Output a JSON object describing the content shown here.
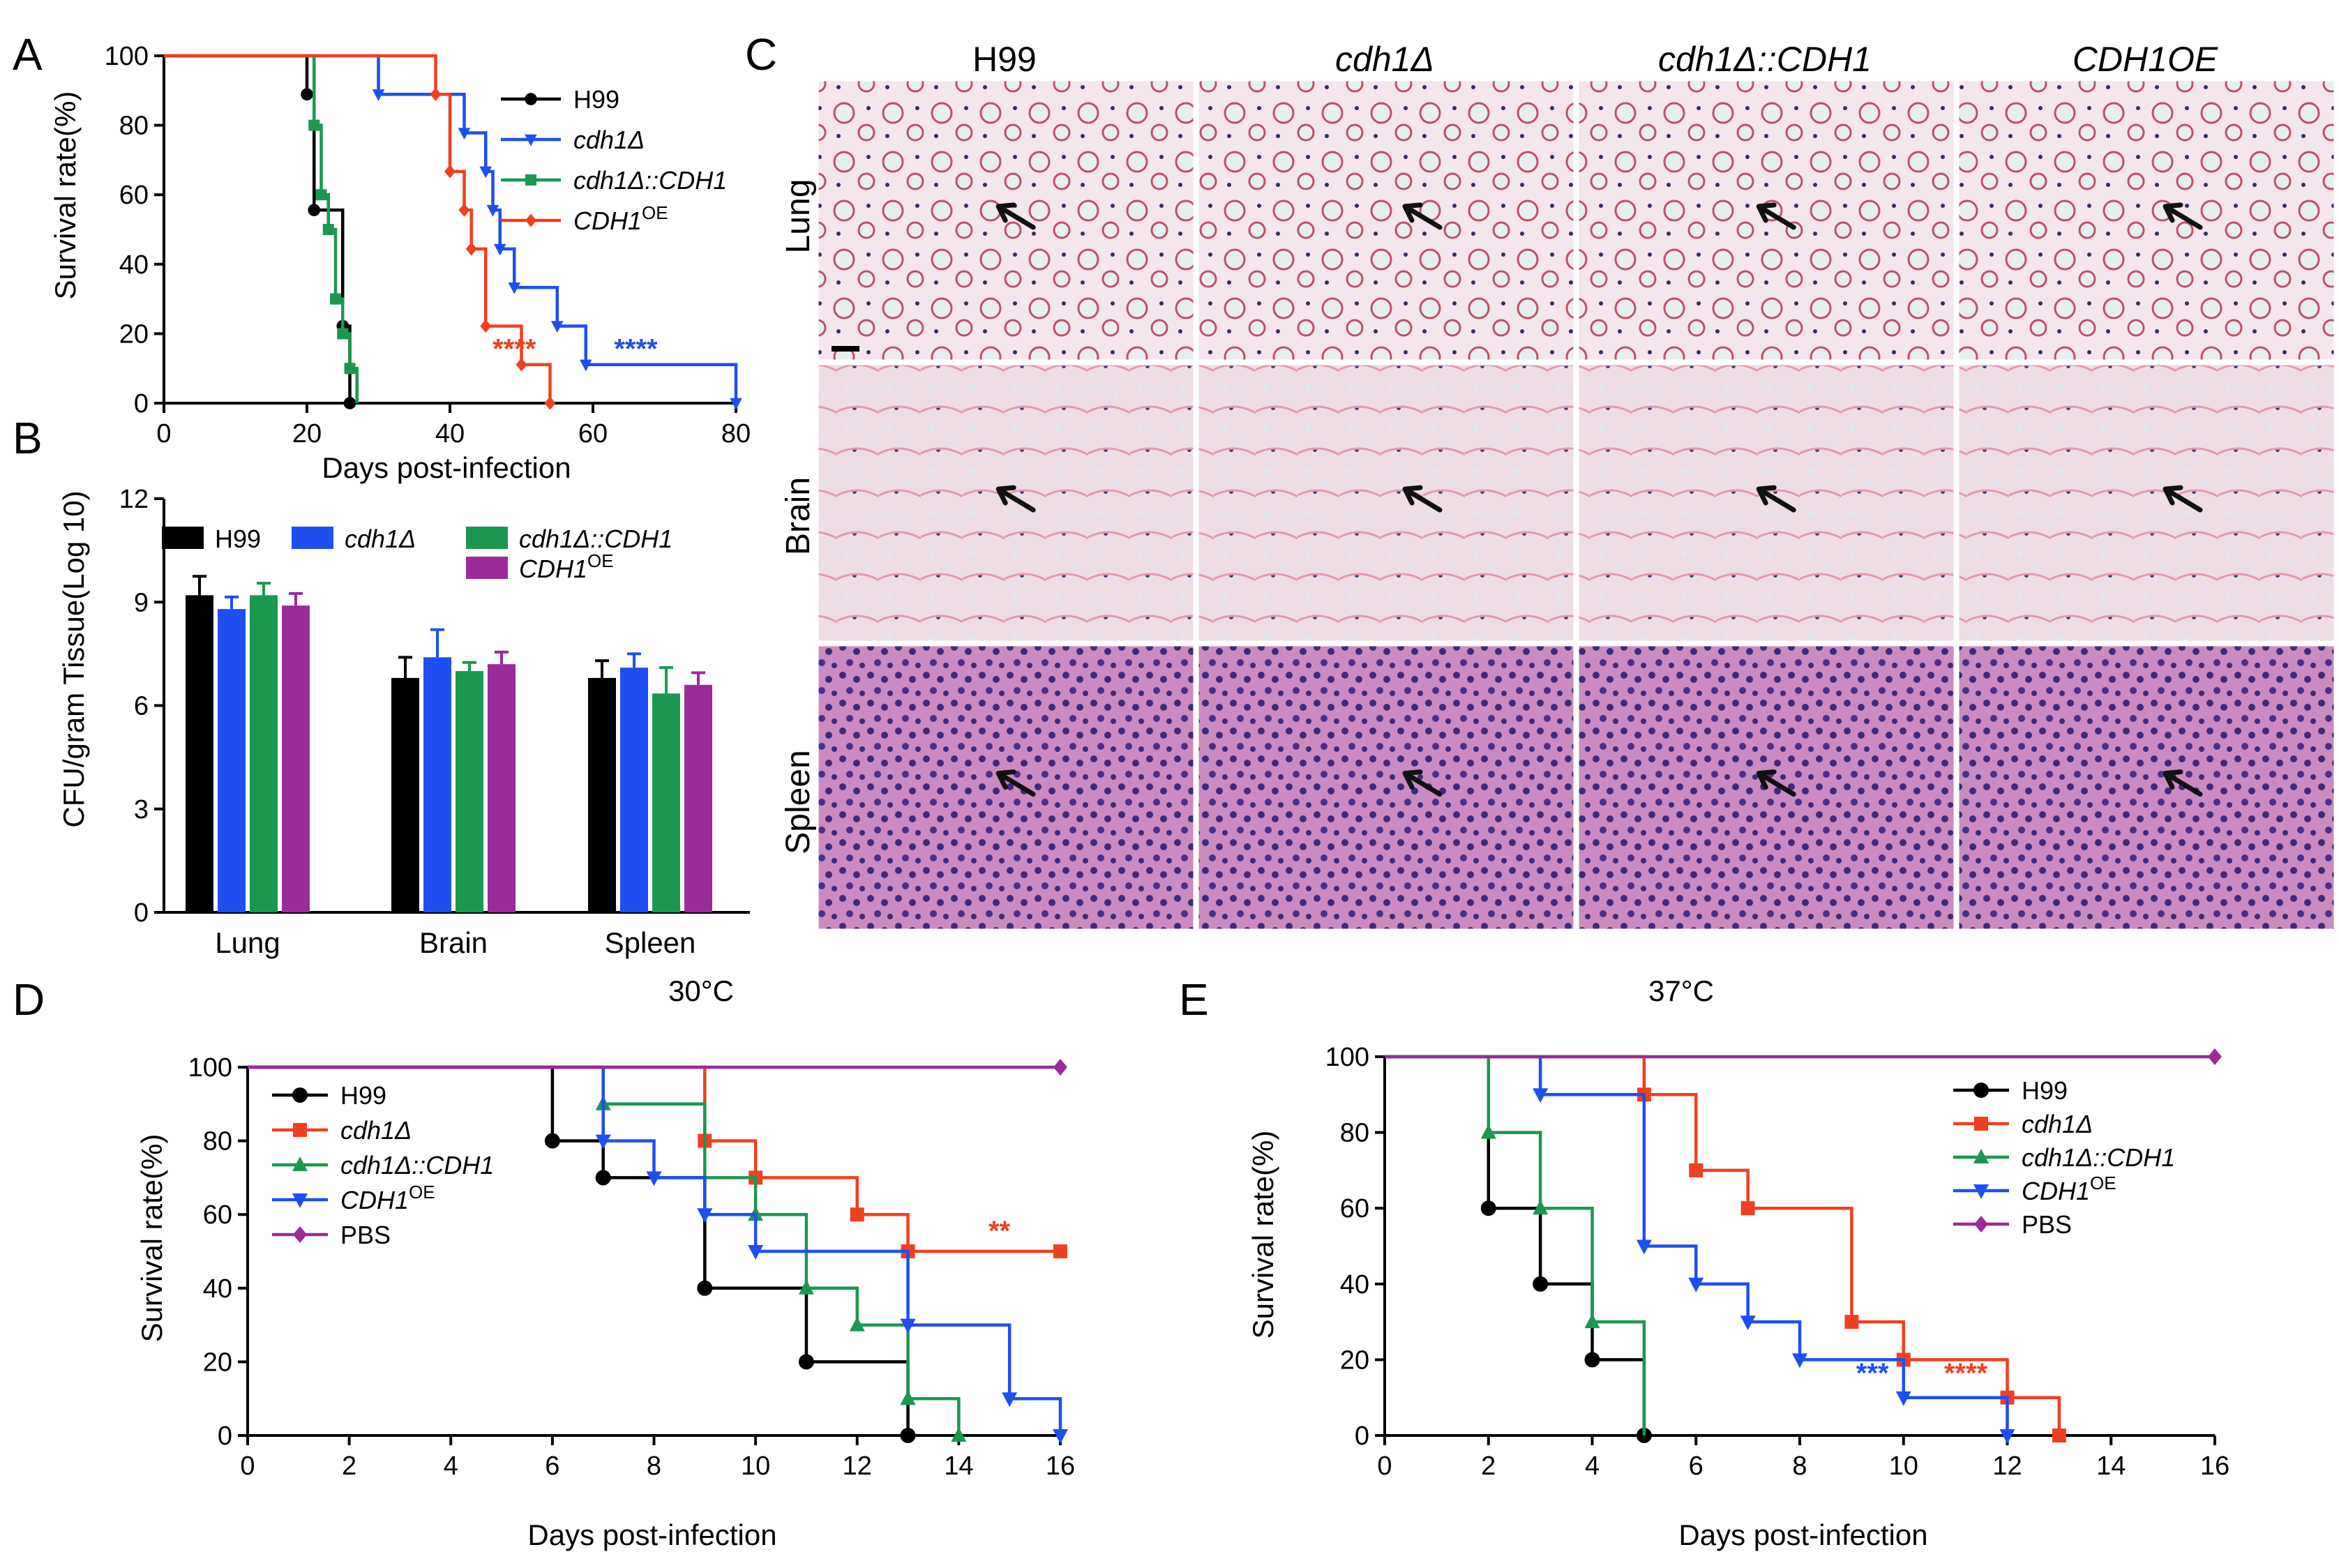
{
  "panel_labels": {
    "A": "A",
    "B": "B",
    "C": "C",
    "D": "D",
    "E": "E"
  },
  "colors": {
    "black": "#000000",
    "blue": "#1f4ff2",
    "green": "#1a9850",
    "red": "#f04020",
    "purple": "#9b2a9b"
  },
  "chart_data": [
    {
      "id": "A",
      "type": "line",
      "subtype": "kaplan-meier",
      "title": "",
      "xlabel": "Days post-infection",
      "ylabel": "Survival rate(%)",
      "xlim": [
        0,
        80
      ],
      "ylim": [
        0,
        100
      ],
      "xticks": [
        0,
        20,
        40,
        60,
        80
      ],
      "yticks": [
        0,
        20,
        40,
        60,
        80,
        100
      ],
      "legend_position": "right",
      "series": [
        {
          "name": "H99",
          "color": "#000000",
          "marker": "circle",
          "steps": [
            [
              0,
              100
            ],
            [
              20,
              88.9
            ],
            [
              21,
              55.6
            ],
            [
              24,
              55.6
            ],
            [
              25,
              22.2
            ],
            [
              26,
              0
            ]
          ],
          "events": [
            [
              20,
              88.9
            ],
            [
              21,
              55.6
            ],
            [
              25,
              22.2
            ],
            [
              26,
              0
            ]
          ]
        },
        {
          "name": "cdh1Δ",
          "color": "#1f4ff2",
          "marker": "down-triangle",
          "steps": [
            [
              0,
              100
            ],
            [
              30,
              88.9
            ],
            [
              42,
              77.8
            ],
            [
              45,
              66.7
            ],
            [
              46,
              55.6
            ],
            [
              47,
              44.4
            ],
            [
              49,
              33.3
            ],
            [
              55,
              22.2
            ],
            [
              59,
              11.1
            ],
            [
              80,
              0
            ]
          ],
          "events": [
            [
              30,
              88.9
            ],
            [
              42,
              77.8
            ],
            [
              45,
              66.7
            ],
            [
              46,
              55.6
            ],
            [
              47,
              44.4
            ],
            [
              49,
              33.3
            ],
            [
              55,
              22.2
            ],
            [
              59,
              11.1
            ],
            [
              80,
              0
            ]
          ]
        },
        {
          "name": "cdh1Δ::CDH1",
          "color": "#1a9850",
          "marker": "square",
          "steps": [
            [
              0,
              100
            ],
            [
              21,
              80
            ],
            [
              22,
              60
            ],
            [
              23,
              50
            ],
            [
              24,
              30
            ],
            [
              25,
              20
            ],
            [
              26,
              10
            ],
            [
              27,
              0
            ]
          ],
          "events": [
            [
              21,
              80
            ],
            [
              22,
              60
            ],
            [
              23,
              50
            ],
            [
              24,
              30
            ],
            [
              25,
              20
            ],
            [
              26,
              10
            ]
          ]
        },
        {
          "name": "CDH1OE",
          "color": "#f04020",
          "marker": "diamond",
          "steps": [
            [
              0,
              100
            ],
            [
              38,
              88.9
            ],
            [
              40,
              66.7
            ],
            [
              42,
              55.6
            ],
            [
              43,
              44.4
            ],
            [
              45,
              22.2
            ],
            [
              50,
              11.1
            ],
            [
              54,
              0
            ]
          ],
          "events": [
            [
              38,
              88.9
            ],
            [
              40,
              66.7
            ],
            [
              42,
              55.6
            ],
            [
              43,
              44.4
            ],
            [
              45,
              22.2
            ],
            [
              50,
              11.1
            ],
            [
              54,
              0
            ]
          ]
        }
      ],
      "annotations": [
        {
          "text": "****",
          "color": "#f04020",
          "x": 49,
          "y": 13
        },
        {
          "text": "****",
          "color": "#1f4ff2",
          "x": 66,
          "y": 13
        }
      ]
    },
    {
      "id": "B",
      "type": "bar",
      "title": "",
      "xlabel": "",
      "ylabel": "CFU/gram Tissue(Log 10)",
      "ylim": [
        0,
        12
      ],
      "yticks": [
        0,
        3,
        6,
        9,
        12
      ],
      "categories": [
        "Lung",
        "Brain",
        "Spleen"
      ],
      "legend_position": "top",
      "series": [
        {
          "name": "H99",
          "color": "#000000",
          "values": [
            9.2,
            6.8,
            6.8
          ],
          "errors": [
            0.55,
            0.6,
            0.5
          ]
        },
        {
          "name": "cdh1Δ",
          "color": "#1f4ff2",
          "values": [
            8.8,
            7.4,
            7.1
          ],
          "errors": [
            0.35,
            0.8,
            0.4
          ]
        },
        {
          "name": "cdh1Δ::CDH1",
          "color": "#1a9850",
          "values": [
            9.2,
            7.0,
            6.35
          ],
          "errors": [
            0.35,
            0.25,
            0.75
          ]
        },
        {
          "name": "CDH1OE",
          "color": "#9b2a9b",
          "values": [
            8.9,
            7.2,
            6.6
          ],
          "errors": [
            0.35,
            0.35,
            0.35
          ]
        }
      ]
    },
    {
      "id": "D",
      "type": "line",
      "subtype": "kaplan-meier",
      "title": "30°C",
      "xlabel": "Days post-infection",
      "ylabel": "Survival rate(%)",
      "xlim": [
        0,
        16
      ],
      "ylim": [
        0,
        100
      ],
      "xticks": [
        0,
        2,
        4,
        6,
        8,
        10,
        12,
        14,
        16
      ],
      "yticks": [
        0,
        20,
        40,
        60,
        80,
        100
      ],
      "legend_position": "top-left",
      "series": [
        {
          "name": "H99",
          "color": "#000000",
          "marker": "circle",
          "steps": [
            [
              0,
              100
            ],
            [
              6,
              80
            ],
            [
              7,
              70
            ],
            [
              9,
              40
            ],
            [
              11,
              20
            ],
            [
              13,
              0
            ]
          ],
          "events": [
            [
              6,
              80
            ],
            [
              7,
              70
            ],
            [
              9,
              40
            ],
            [
              11,
              20
            ],
            [
              13,
              0
            ]
          ]
        },
        {
          "name": "cdh1Δ",
          "color": "#f04020",
          "marker": "square",
          "steps": [
            [
              0,
              100
            ],
            [
              9,
              80
            ],
            [
              10,
              70
            ],
            [
              12,
              60
            ],
            [
              13,
              50
            ],
            [
              16,
              50
            ]
          ],
          "events": [
            [
              9,
              80
            ],
            [
              10,
              70
            ],
            [
              12,
              60
            ],
            [
              13,
              50
            ],
            [
              16,
              50
            ]
          ]
        },
        {
          "name": "cdh1Δ::CDH1",
          "color": "#1a9850",
          "marker": "up-triangle",
          "steps": [
            [
              0,
              100
            ],
            [
              7,
              90
            ],
            [
              9,
              70
            ],
            [
              10,
              60
            ],
            [
              11,
              40
            ],
            [
              12,
              30
            ],
            [
              13,
              10
            ],
            [
              14,
              0
            ]
          ],
          "events": [
            [
              7,
              90
            ],
            [
              10,
              60
            ],
            [
              11,
              40
            ],
            [
              12,
              30
            ],
            [
              13,
              10
            ],
            [
              14,
              0
            ]
          ]
        },
        {
          "name": "CDH1OE",
          "color": "#1f4ff2",
          "marker": "down-triangle",
          "steps": [
            [
              0,
              100
            ],
            [
              7,
              80
            ],
            [
              8,
              70
            ],
            [
              9,
              60
            ],
            [
              10,
              50
            ],
            [
              13,
              30
            ],
            [
              15,
              10
            ],
            [
              16,
              0
            ]
          ],
          "events": [
            [
              7,
              80
            ],
            [
              8,
              70
            ],
            [
              9,
              60
            ],
            [
              10,
              50
            ],
            [
              13,
              30
            ],
            [
              15,
              10
            ],
            [
              16,
              0
            ]
          ]
        },
        {
          "name": "PBS",
          "color": "#9b2a9b",
          "marker": "diamond",
          "steps": [
            [
              0,
              100
            ],
            [
              16,
              100
            ]
          ],
          "events": [
            [
              16,
              100
            ]
          ]
        }
      ],
      "annotations": [
        {
          "text": "**",
          "color": "#f04020",
          "x": 14.8,
          "y": 53
        }
      ]
    },
    {
      "id": "E",
      "type": "line",
      "subtype": "kaplan-meier",
      "title": "37°C",
      "xlabel": "Days post-infection",
      "ylabel": "Survival rate(%)",
      "xlim": [
        0,
        16
      ],
      "ylim": [
        0,
        100
      ],
      "xticks": [
        0,
        2,
        4,
        6,
        8,
        10,
        12,
        14,
        16
      ],
      "yticks": [
        0,
        20,
        40,
        60,
        80,
        100
      ],
      "legend_position": "right",
      "series": [
        {
          "name": "H99",
          "color": "#000000",
          "marker": "circle",
          "steps": [
            [
              0,
              100
            ],
            [
              2,
              60
            ],
            [
              3,
              40
            ],
            [
              4,
              20
            ],
            [
              5,
              0
            ]
          ],
          "events": [
            [
              2,
              60
            ],
            [
              3,
              40
            ],
            [
              4,
              20
            ],
            [
              5,
              0
            ]
          ]
        },
        {
          "name": "cdh1Δ",
          "color": "#f04020",
          "marker": "square",
          "steps": [
            [
              0,
              100
            ],
            [
              5,
              90
            ],
            [
              6,
              70
            ],
            [
              7,
              60
            ],
            [
              9,
              30
            ],
            [
              10,
              20
            ],
            [
              12,
              10
            ],
            [
              13,
              0
            ]
          ],
          "events": [
            [
              5,
              90
            ],
            [
              6,
              70
            ],
            [
              7,
              60
            ],
            [
              9,
              30
            ],
            [
              10,
              20
            ],
            [
              12,
              10
            ],
            [
              13,
              0
            ]
          ]
        },
        {
          "name": "cdh1Δ::CDH1",
          "color": "#1a9850",
          "marker": "up-triangle",
          "steps": [
            [
              0,
              100
            ],
            [
              2,
              80
            ],
            [
              3,
              60
            ],
            [
              4,
              30
            ],
            [
              5,
              0
            ]
          ],
          "events": [
            [
              2,
              80
            ],
            [
              3,
              60
            ],
            [
              4,
              30
            ]
          ]
        },
        {
          "name": "CDH1OE",
          "color": "#1f4ff2",
          "marker": "down-triangle",
          "steps": [
            [
              0,
              100
            ],
            [
              3,
              90
            ],
            [
              5,
              50
            ],
            [
              6,
              40
            ],
            [
              7,
              30
            ],
            [
              8,
              20
            ],
            [
              10,
              10
            ],
            [
              12,
              0
            ]
          ],
          "events": [
            [
              3,
              90
            ],
            [
              5,
              50
            ],
            [
              6,
              40
            ],
            [
              7,
              30
            ],
            [
              8,
              20
            ],
            [
              10,
              10
            ],
            [
              12,
              0
            ]
          ]
        },
        {
          "name": "PBS",
          "color": "#9b2a9b",
          "marker": "diamond",
          "steps": [
            [
              0,
              100
            ],
            [
              16,
              100
            ]
          ],
          "events": [
            [
              16,
              100
            ]
          ]
        }
      ],
      "annotations": [
        {
          "text": "***",
          "color": "#1f4ff2",
          "x": 9.4,
          "y": 14
        },
        {
          "text": "****",
          "color": "#f04020",
          "x": 11.2,
          "y": 14
        }
      ]
    }
  ],
  "histology": {
    "columns": [
      "H99",
      "cdh1Δ",
      "cdh1Δ::CDH1",
      "CDH1OE"
    ],
    "rows": [
      "Lung",
      "Brain",
      "Spleen"
    ]
  }
}
